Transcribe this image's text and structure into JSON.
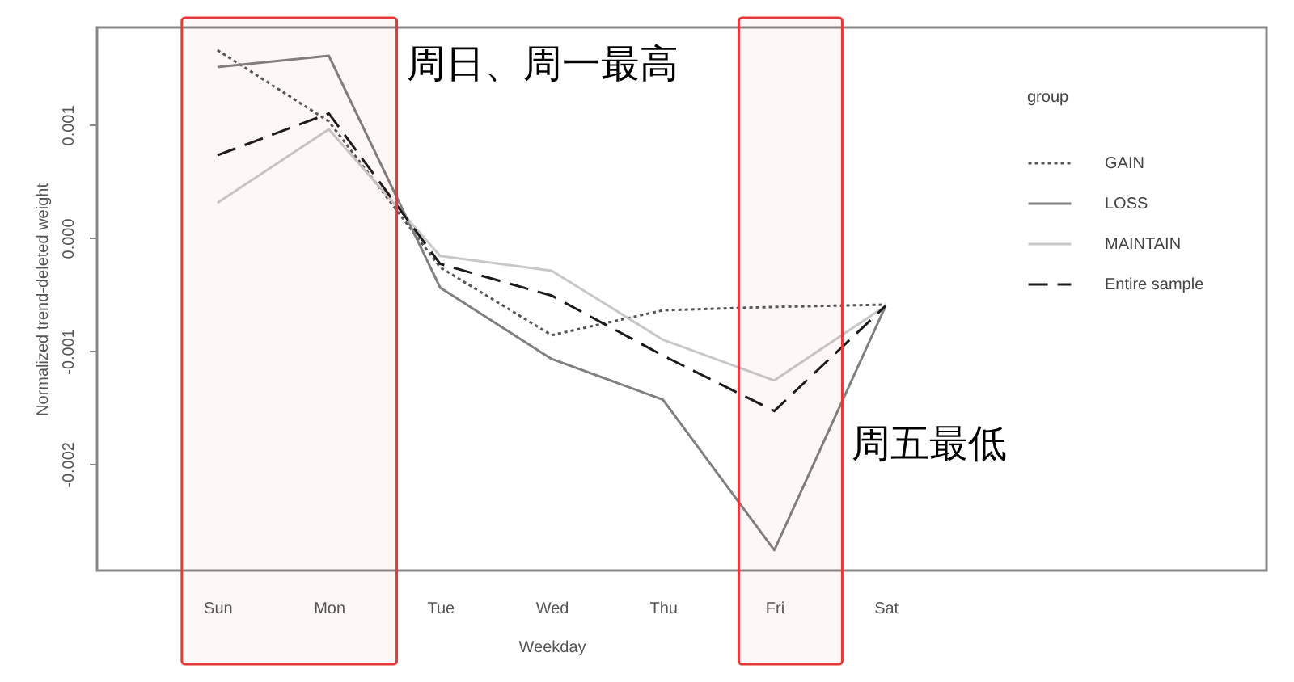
{
  "chart_data": {
    "type": "line",
    "categories": [
      "Sun",
      "Mon",
      "Tue",
      "Wed",
      "Thu",
      "Fri",
      "Sat"
    ],
    "series": [
      {
        "name": "GAIN",
        "color": "#555555",
        "line_style": "dotted",
        "values": [
          0.00166,
          0.00103,
          -0.00026,
          -0.00086,
          -0.00064,
          -0.00061,
          -0.00059
        ]
      },
      {
        "name": "LOSS",
        "color": "#808080",
        "line_style": "solid",
        "values": [
          0.00151,
          0.00161,
          -0.00044,
          -0.00107,
          -0.00143,
          -0.00276,
          -0.0006
        ]
      },
      {
        "name": "MAINTAIN",
        "color": "#c8c8c8",
        "line_style": "solid",
        "values": [
          0.00031,
          0.00096,
          -0.00016,
          -0.00029,
          -0.0009,
          -0.00126,
          -0.0006
        ]
      },
      {
        "name": "Entire sample",
        "color": "#1a1a1a",
        "line_style": "dashed",
        "values": [
          0.00073,
          0.0011,
          -0.00023,
          -0.00051,
          -0.00104,
          -0.00153,
          -0.0006
        ]
      }
    ],
    "xlabel": "Weekday",
    "ylabel": "Normalized trend-deleted weight",
    "legend_title": "group",
    "ylim": [
      -0.00294,
      0.00186
    ],
    "yticks": [
      {
        "value": 0.001,
        "label": "0.001"
      },
      {
        "value": 0,
        "label": "0.000"
      },
      {
        "value": -0.001,
        "label": "-0.001"
      },
      {
        "value": -0.002,
        "label": "-0.002"
      }
    ],
    "bands": [
      {
        "axis": "x",
        "from": "Sun",
        "to": "Mon",
        "label": "周日、周一最高",
        "color": "#e53935"
      },
      {
        "axis": "x",
        "from": "Fri",
        "to": "Fri",
        "label": "周五最低",
        "color": "#e53935"
      }
    ],
    "grid": false,
    "legend": "top right"
  }
}
